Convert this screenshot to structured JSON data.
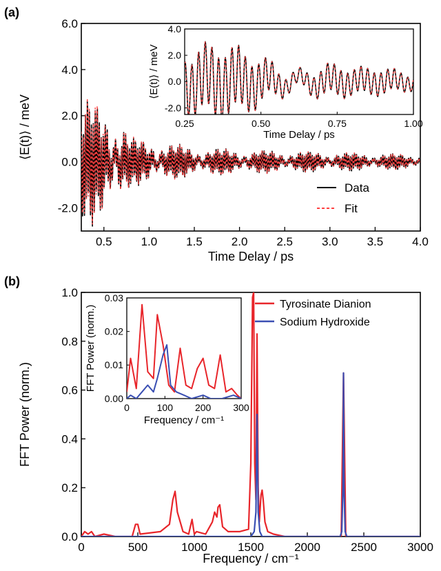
{
  "chart_data": [
    {
      "panel_label": "(a)",
      "type": "line",
      "xlabel": "Time Delay / ps",
      "ylabel": "⟨E(t)⟩ / meV",
      "xlim": [
        0.25,
        4.0
      ],
      "ylim": [
        -3.0,
        6.0
      ],
      "xticks": [
        0.5,
        1.0,
        1.5,
        2.0,
        2.5,
        3.0,
        3.5,
        4.0
      ],
      "xtick_labels": [
        "0.5",
        "1.0",
        "1.5",
        "2.0",
        "2.5",
        "3.0",
        "3.5",
        "4.0"
      ],
      "yticks": [
        -2.0,
        0.0,
        2.0,
        4.0,
        6.0
      ],
      "ytick_labels": [
        "-2.0",
        "0.0",
        "2.0",
        "4.0",
        "6.0"
      ],
      "legend": "lower-right",
      "series": [
        {
          "name": "Data",
          "color": "#000000",
          "style": "solid",
          "envelope": [
            [
              0.25,
              2.8
            ],
            [
              0.35,
              2.6
            ],
            [
              0.5,
              2.2
            ],
            [
              0.6,
              2.0
            ],
            [
              0.7,
              1.8
            ],
            [
              0.8,
              1.0
            ],
            [
              1.0,
              0.9
            ],
            [
              1.5,
              0.6
            ],
            [
              2.0,
              0.5
            ],
            [
              2.5,
              0.45
            ],
            [
              3.0,
              0.4
            ],
            [
              3.5,
              0.35
            ],
            [
              4.0,
              0.3
            ]
          ]
        },
        {
          "name": "Fit",
          "color": "#ff4040",
          "style": "dashed",
          "envelope": [
            [
              0.25,
              2.8
            ],
            [
              0.35,
              2.6
            ],
            [
              0.5,
              2.2
            ],
            [
              0.6,
              2.0
            ],
            [
              0.7,
              1.8
            ],
            [
              0.8,
              1.0
            ],
            [
              1.0,
              0.9
            ],
            [
              1.5,
              0.6
            ],
            [
              2.0,
              0.5
            ],
            [
              2.5,
              0.45
            ],
            [
              3.0,
              0.4
            ],
            [
              3.5,
              0.35
            ],
            [
              4.0,
              0.3
            ]
          ]
        }
      ],
      "inset": {
        "type": "line",
        "xlabel": "Time Delay / ps",
        "ylabel": "⟨E(t)⟩ / meV",
        "xlim": [
          0.25,
          1.0
        ],
        "ylim": [
          -2.5,
          4.0
        ],
        "xticks": [
          0.25,
          0.5,
          0.75,
          1.0
        ],
        "xtick_labels": [
          "0.25",
          "0.50",
          "0.75",
          "1.00"
        ],
        "yticks": [
          -2.0,
          0.0,
          2.0,
          4.0
        ],
        "ytick_labels": [
          "-2.0",
          "0.0",
          "2.0",
          "4.0"
        ]
      }
    },
    {
      "panel_label": "(b)",
      "type": "line",
      "xlabel": "Frequency / cm⁻¹",
      "ylabel": "FFT Power (norm.)",
      "xlim": [
        0,
        3000
      ],
      "ylim": [
        0,
        1.0
      ],
      "xticks": [
        0,
        500,
        1000,
        1500,
        2000,
        2500,
        3000
      ],
      "xtick_labels": [
        "0",
        "500",
        "1000",
        "1500",
        "2000",
        "2500",
        "3000"
      ],
      "yticks": [
        0.0,
        0.2,
        0.4,
        0.6,
        0.8,
        1.0
      ],
      "ytick_labels": [
        "0.0",
        "0.2",
        "0.4",
        "0.6",
        "0.8",
        "1.0"
      ],
      "legend": "top-right",
      "series": [
        {
          "name": "Tyrosinate Dianion",
          "color": "#e8252a",
          "x": [
            0,
            30,
            60,
            90,
            120,
            200,
            300,
            450,
            480,
            500,
            520,
            700,
            780,
            810,
            830,
            850,
            900,
            950,
            980,
            1000,
            1020,
            1100,
            1160,
            1180,
            1200,
            1210,
            1225,
            1250,
            1300,
            1400,
            1480,
            1500,
            1515,
            1525,
            1535,
            1545,
            1555,
            1565,
            1575,
            1590,
            1600,
            1610,
            1625,
            1650,
            1700,
            1800,
            2000,
            2200,
            2300,
            2320,
            2340,
            2400,
            2600,
            2800,
            3000
          ],
          "y": [
            0.0,
            0.02,
            0.01,
            0.02,
            0.0,
            0.01,
            0.0,
            0.0,
            0.05,
            0.05,
            0.01,
            0.02,
            0.05,
            0.15,
            0.185,
            0.1,
            0.02,
            0.01,
            0.07,
            0.01,
            0.02,
            0.01,
            0.06,
            0.1,
            0.08,
            0.12,
            0.13,
            0.04,
            0.02,
            0.02,
            0.03,
            0.3,
            0.98,
            1.0,
            0.3,
            0.15,
            0.83,
            0.2,
            0.06,
            0.17,
            0.19,
            0.15,
            0.06,
            0.02,
            0.01,
            0.0,
            0.0,
            0.0,
            0.0,
            0.67,
            0.0,
            0.0,
            0.0,
            0.0,
            0.0
          ]
        },
        {
          "name": "Sodium Hydroxide",
          "color": "#3a4fb3",
          "x": [
            0,
            500,
            1000,
            1400,
            1500,
            1530,
            1545,
            1555,
            1565,
            1580,
            1600,
            2000,
            2290,
            2305,
            2315,
            2320,
            2325,
            2335,
            2350,
            2500,
            3000
          ],
          "y": [
            0.0,
            0.0,
            0.0,
            0.0,
            0.0,
            0.02,
            0.1,
            0.5,
            0.1,
            0.02,
            0.0,
            0.0,
            0.0,
            0.02,
            0.2,
            0.67,
            0.2,
            0.02,
            0.0,
            0.0,
            0.0
          ]
        }
      ],
      "inset": {
        "type": "line",
        "xlabel": "Frequency / cm⁻¹",
        "ylabel": "FFT Power (norm.)",
        "xlim": [
          0,
          300
        ],
        "ylim": [
          0,
          0.03
        ],
        "xticks": [
          0,
          100,
          200,
          300
        ],
        "xtick_labels": [
          "0",
          "100",
          "200",
          "300"
        ],
        "yticks": [
          0.0,
          0.01,
          0.02,
          0.03
        ],
        "ytick_labels": [
          "0.00",
          "0.01",
          "0.02",
          "0.03"
        ],
        "series": [
          {
            "name": "Tyrosinate Dianion",
            "color": "#e8252a",
            "x": [
              0,
              10,
              25,
              40,
              55,
              70,
              80,
              95,
              110,
              125,
              140,
              155,
              170,
              185,
              200,
              215,
              230,
              245,
              260,
              275,
              290,
              300
            ],
            "y": [
              0.002,
              0.012,
              0.003,
              0.028,
              0.008,
              0.006,
              0.025,
              0.016,
              0.004,
              0.002,
              0.015,
              0.004,
              0.003,
              0.009,
              0.012,
              0.004,
              0.003,
              0.013,
              0.002,
              0.003,
              0.001,
              0.0
            ]
          },
          {
            "name": "Sodium Hydroxide",
            "color": "#3a4fb3",
            "x": [
              0,
              10,
              25,
              40,
              55,
              70,
              80,
              95,
              105,
              115,
              130,
              150,
              170,
              200,
              220,
              250,
              280,
              300
            ],
            "y": [
              0.0,
              0.001,
              0.0,
              0.002,
              0.004,
              0.002,
              0.006,
              0.013,
              0.016,
              0.004,
              0.002,
              0.001,
              0.0,
              0.001,
              0.0,
              0.0,
              0.001,
              0.0
            ]
          }
        ]
      }
    }
  ]
}
